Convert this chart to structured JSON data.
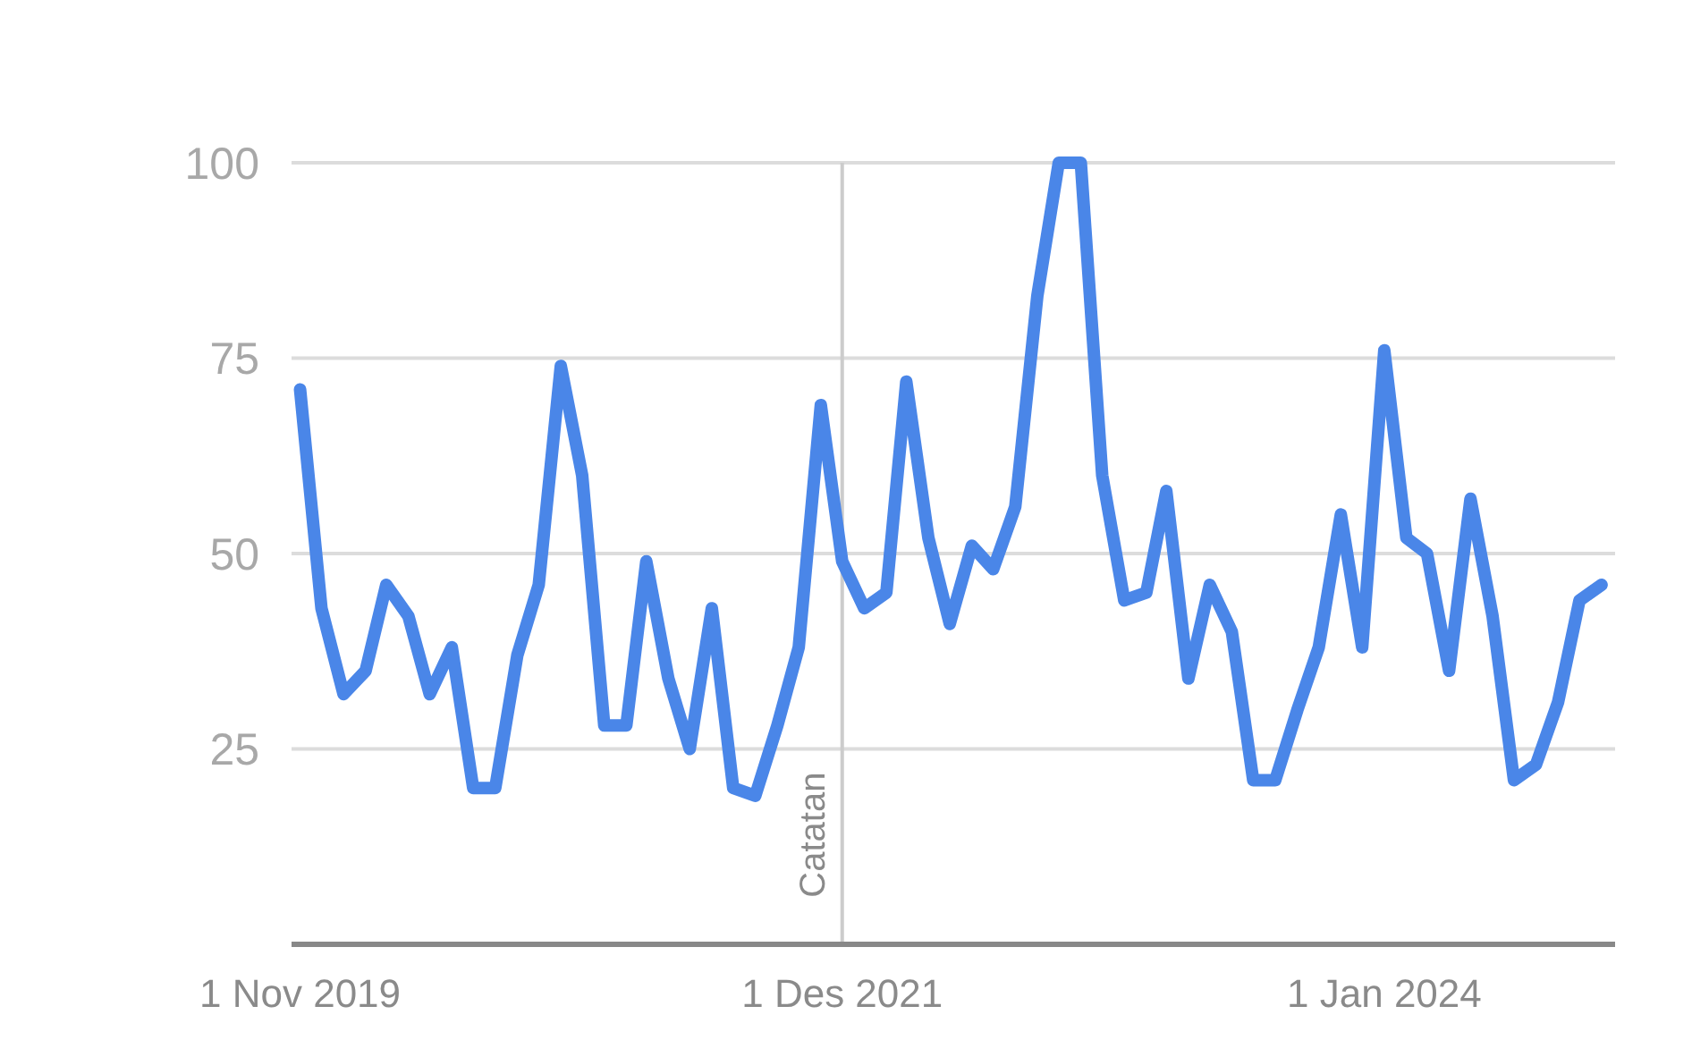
{
  "chart_data": {
    "type": "line",
    "x": [
      "2019-11",
      "2019-12",
      "2020-01",
      "2020-02",
      "2020-03",
      "2020-04",
      "2020-05",
      "2020-06",
      "2020-07",
      "2020-08",
      "2020-09",
      "2020-10",
      "2020-11",
      "2020-12",
      "2021-01",
      "2021-02",
      "2021-03",
      "2021-04",
      "2021-05",
      "2021-06",
      "2021-07",
      "2021-08",
      "2021-09",
      "2021-10",
      "2021-11",
      "2021-12",
      "2022-01",
      "2022-02",
      "2022-03",
      "2022-04",
      "2022-05",
      "2022-06",
      "2022-07",
      "2022-08",
      "2022-09",
      "2022-10",
      "2022-11",
      "2022-12",
      "2023-01",
      "2023-02",
      "2023-03",
      "2023-04",
      "2023-05",
      "2023-06",
      "2023-07",
      "2023-08",
      "2023-09",
      "2023-10",
      "2023-11",
      "2023-12",
      "2024-01",
      "2024-02",
      "2024-03",
      "2024-04",
      "2024-05",
      "2024-06",
      "2024-07",
      "2024-08",
      "2024-09",
      "2024-10",
      "2024-11"
    ],
    "series": [
      {
        "color": "#4a86e8",
        "values": [
          71,
          43,
          32,
          35,
          46,
          42,
          32,
          38,
          20,
          20,
          37,
          46,
          74,
          60,
          28,
          28,
          49,
          34,
          25,
          43,
          20,
          19,
          28,
          38,
          69,
          49,
          43,
          45,
          72,
          52,
          41,
          51,
          48,
          56,
          83,
          100,
          100,
          60,
          44,
          45,
          58,
          34,
          46,
          40,
          21,
          21,
          30,
          38,
          55,
          38,
          76,
          52,
          50,
          35,
          57,
          42,
          21,
          23,
          31,
          44,
          46
        ]
      }
    ],
    "xlim": [
      "2019-10-20",
      "2024-11-20"
    ],
    "xticks": [
      {
        "value": "2019-11-01",
        "label": "1 Nov 2019"
      },
      {
        "value": "2021-12-01",
        "label": "1 Des 2021"
      },
      {
        "value": "2024-01-01",
        "label": "1 Jan 2024"
      }
    ],
    "ylim": [
      0,
      100
    ],
    "yticks": [
      25,
      50,
      75,
      100
    ],
    "grid": "y",
    "ref_lines": [
      {
        "axis": "x",
        "value": "2021-12-01",
        "label": "Catatan",
        "color": "#cccccc"
      }
    ]
  }
}
